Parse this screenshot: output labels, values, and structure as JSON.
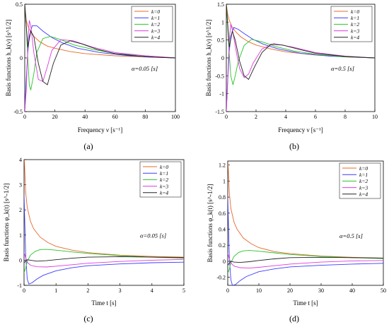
{
  "figure": {
    "panel_labels": [
      "(a)",
      "(b)",
      "(c)",
      "(d)"
    ]
  },
  "colors": {
    "k0": "#e8682a",
    "k1": "#3b3bff",
    "k2": "#28c428",
    "k3": "#dd3be0",
    "k4": "#222222"
  },
  "chart_data": [
    {
      "type": "line",
      "panel": "(a)",
      "xlabel": "Frequency  ν [s⁻¹]",
      "ylabel": "Basis functions h_k(ν) [s^1/2]",
      "annotation": "α=0.05 [s]",
      "xlim": [
        0,
        100
      ],
      "ylim": [
        -0.5,
        0.5
      ],
      "xticks": [
        "0",
        "20",
        "40",
        "60",
        "80",
        "100"
      ],
      "yticks": [
        "-0.5",
        "0",
        "0.5"
      ],
      "legend": "top-right",
      "grid": false,
      "series": [
        {
          "name": "k=0",
          "color_key": "k0",
          "x": [
            0,
            1,
            2,
            4,
            6,
            10,
            15,
            20,
            30,
            40,
            60,
            80,
            100
          ],
          "y": [
            0.5,
            0.35,
            0.3,
            0.24,
            0.2,
            0.15,
            0.11,
            0.09,
            0.06,
            0.04,
            0.02,
            0.01,
            0.0
          ]
        },
        {
          "name": "k=1",
          "color_key": "k1",
          "x": [
            0,
            1,
            2,
            3,
            5,
            8,
            12,
            18,
            25,
            35,
            50,
            70,
            100
          ],
          "y": [
            -0.5,
            -0.2,
            0.05,
            0.2,
            0.3,
            0.3,
            0.25,
            0.19,
            0.14,
            0.09,
            0.05,
            0.02,
            0.0
          ]
        },
        {
          "name": "k=2",
          "color_key": "k2",
          "x": [
            0,
            1,
            2,
            3,
            4,
            6,
            8,
            12,
            17,
            24,
            33,
            45,
            60,
            80,
            100
          ],
          "y": [
            0.5,
            0.3,
            0.0,
            -0.25,
            -0.3,
            -0.15,
            0.05,
            0.18,
            0.2,
            0.17,
            0.12,
            0.08,
            0.04,
            0.02,
            0.0
          ]
        },
        {
          "name": "k=3",
          "color_key": "k3",
          "x": [
            0,
            1,
            2,
            3,
            4,
            6,
            9,
            12,
            15,
            18,
            24,
            32,
            45,
            60,
            80,
            100
          ],
          "y": [
            -0.5,
            -0.3,
            0.1,
            0.35,
            0.3,
            0.05,
            -0.2,
            -0.22,
            -0.08,
            0.07,
            0.17,
            0.16,
            0.1,
            0.05,
            0.02,
            0.0
          ]
        },
        {
          "name": "k=4",
          "color_key": "k4",
          "x": [
            0,
            2,
            4,
            6,
            9,
            12,
            15,
            19,
            24,
            30,
            38,
            48,
            60,
            80,
            100
          ],
          "y": [
            0.5,
            0.1,
            0.25,
            0.2,
            -0.05,
            -0.22,
            -0.25,
            -0.05,
            0.12,
            0.16,
            0.13,
            0.08,
            0.04,
            0.01,
            0.0
          ]
        }
      ]
    },
    {
      "type": "line",
      "panel": "(b)",
      "xlabel": "Frequency  ν [s⁻¹]",
      "ylabel": "Basis functions h_k(ν) [s^1/2]",
      "annotation": "α=0.5 [s]",
      "xlim": [
        0,
        10
      ],
      "ylim": [
        -1.5,
        1.5
      ],
      "xticks": [
        "0",
        "2",
        "4",
        "6",
        "8",
        "10"
      ],
      "yticks": [
        "-1.5",
        "-1",
        "-0.5",
        "0",
        "0.5",
        "1",
        "1.5"
      ],
      "legend": "top-right",
      "grid": false,
      "series": [
        {
          "name": "k=0",
          "color_key": "k0",
          "x": [
            0,
            0.1,
            0.2,
            0.4,
            0.7,
            1,
            1.5,
            2,
            3,
            4,
            6,
            8,
            10
          ],
          "y": [
            1.5,
            1.2,
            1.05,
            0.85,
            0.7,
            0.58,
            0.45,
            0.36,
            0.25,
            0.17,
            0.08,
            0.03,
            0.0
          ]
        },
        {
          "name": "k=1",
          "color_key": "k1",
          "x": [
            0,
            0.1,
            0.2,
            0.3,
            0.5,
            0.8,
            1.2,
            1.8,
            2.5,
            3.5,
            5,
            7,
            10
          ],
          "y": [
            -1.5,
            -0.6,
            0.2,
            0.6,
            0.85,
            0.8,
            0.68,
            0.52,
            0.38,
            0.25,
            0.13,
            0.05,
            0.0
          ]
        },
        {
          "name": "k=2",
          "color_key": "k2",
          "x": [
            0,
            0.1,
            0.2,
            0.3,
            0.45,
            0.6,
            0.8,
            1.2,
            1.7,
            2.4,
            3.3,
            4.5,
            6,
            8,
            10
          ],
          "y": [
            1.5,
            0.8,
            0.1,
            -0.5,
            -0.75,
            -0.5,
            -0.1,
            0.35,
            0.52,
            0.45,
            0.32,
            0.2,
            0.1,
            0.03,
            0.0
          ]
        },
        {
          "name": "k=3",
          "color_key": "k3",
          "x": [
            0,
            0.1,
            0.2,
            0.3,
            0.45,
            0.7,
            0.9,
            1.2,
            1.5,
            1.8,
            2.4,
            3.2,
            4.5,
            6,
            8,
            10
          ],
          "y": [
            -1.5,
            -0.5,
            0.5,
            0.95,
            0.7,
            0.1,
            -0.3,
            -0.55,
            -0.45,
            -0.15,
            0.25,
            0.4,
            0.3,
            0.15,
            0.05,
            0.0
          ]
        },
        {
          "name": "k=4",
          "color_key": "k4",
          "x": [
            0,
            0.2,
            0.4,
            0.6,
            0.9,
            1.2,
            1.5,
            1.9,
            2.4,
            3,
            3.8,
            4.8,
            6,
            8,
            10
          ],
          "y": [
            1.5,
            0.3,
            0.75,
            0.5,
            -0.1,
            -0.5,
            -0.6,
            -0.25,
            0.15,
            0.38,
            0.36,
            0.25,
            0.13,
            0.04,
            0.0
          ]
        }
      ]
    },
    {
      "type": "line",
      "panel": "(c)",
      "xlabel": "Time  t [s]",
      "ylabel": "Basis functions  φ_k(t) [s^-1/2]",
      "annotation": "α=0.05 [s]",
      "xlim": [
        0,
        5
      ],
      "ylim": [
        -1,
        4
      ],
      "xticks": [
        "0",
        "1",
        "2",
        "3",
        "4",
        "5"
      ],
      "yticks": [
        "-1",
        "0",
        "1",
        "2",
        "3",
        "4"
      ],
      "legend": "top-right",
      "grid": false,
      "series": [
        {
          "name": "k=0",
          "color_key": "k0",
          "x": [
            0.01,
            0.03,
            0.05,
            0.1,
            0.2,
            0.3,
            0.5,
            0.75,
            1,
            1.5,
            2,
            3,
            4,
            5
          ],
          "y": [
            4,
            3.3,
            2.7,
            2.1,
            1.55,
            1.25,
            0.92,
            0.7,
            0.55,
            0.4,
            0.3,
            0.2,
            0.15,
            0.12
          ]
        },
        {
          "name": "k=1",
          "color_key": "k1",
          "x": [
            0,
            0.05,
            0.1,
            0.15,
            0.25,
            0.4,
            0.6,
            1,
            1.5,
            2,
            3,
            4,
            5
          ],
          "y": [
            2.6,
            0.2,
            -0.75,
            -0.95,
            -0.9,
            -0.75,
            -0.6,
            -0.42,
            -0.3,
            -0.22,
            -0.15,
            -0.1,
            -0.08
          ]
        },
        {
          "name": "k=2",
          "color_key": "k2",
          "x": [
            0,
            0.05,
            0.1,
            0.2,
            0.35,
            0.5,
            0.7,
            1,
            1.5,
            2,
            3,
            4,
            5
          ],
          "y": [
            -0.5,
            -0.3,
            -0.05,
            0.2,
            0.35,
            0.42,
            0.43,
            0.4,
            0.33,
            0.27,
            0.18,
            0.12,
            0.08
          ]
        },
        {
          "name": "k=3",
          "color_key": "k3",
          "x": [
            0,
            0.05,
            0.1,
            0.2,
            0.4,
            0.7,
            1,
            1.5,
            2,
            3,
            4,
            5
          ],
          "y": [
            0.3,
            0.1,
            -0.08,
            -0.2,
            -0.26,
            -0.27,
            -0.24,
            -0.18,
            -0.12,
            -0.05,
            0.0,
            0.03
          ]
        },
        {
          "name": "k=4",
          "color_key": "k4",
          "x": [
            0,
            0.1,
            0.2,
            0.4,
            0.7,
            1,
            1.5,
            2,
            3,
            4,
            5
          ],
          "y": [
            -0.1,
            0.02,
            0.0,
            -0.04,
            -0.02,
            0.02,
            0.08,
            0.12,
            0.14,
            0.12,
            0.1
          ]
        }
      ]
    },
    {
      "type": "line",
      "panel": "(d)",
      "xlabel": "Time  t [s]",
      "ylabel": "Basis functions  φ_k(t) [s^-1/2]",
      "annotation": "α=0.5 [s]",
      "xlim": [
        0,
        50
      ],
      "ylim": [
        -0.3,
        1.25
      ],
      "xticks": [
        "0",
        "10",
        "20",
        "30",
        "40",
        "50"
      ],
      "yticks": [
        "-0.2",
        "0",
        "0.2",
        "0.4",
        "0.6",
        "0.8",
        "1",
        "1.2"
      ],
      "legend": "top-right",
      "grid": false,
      "series": [
        {
          "name": "k=0",
          "color_key": "k0",
          "x": [
            0.1,
            0.3,
            0.5,
            1,
            2,
            3,
            5,
            7.5,
            10,
            15,
            20,
            30,
            40,
            50
          ],
          "y": [
            1.22,
            1.05,
            0.86,
            0.66,
            0.49,
            0.4,
            0.29,
            0.22,
            0.17,
            0.12,
            0.095,
            0.065,
            0.05,
            0.04
          ]
        },
        {
          "name": "k=1",
          "color_key": "k1",
          "x": [
            0,
            0.5,
            1,
            1.5,
            2.5,
            4,
            6,
            10,
            15,
            20,
            30,
            40,
            50
          ],
          "y": [
            0.8,
            0.06,
            -0.23,
            -0.3,
            -0.29,
            -0.24,
            -0.19,
            -0.13,
            -0.095,
            -0.07,
            -0.05,
            -0.035,
            -0.025
          ]
        },
        {
          "name": "k=2",
          "color_key": "k2",
          "x": [
            0,
            0.5,
            1,
            2,
            3.5,
            5,
            7,
            10,
            15,
            20,
            30,
            40,
            50
          ],
          "y": [
            -0.15,
            -0.1,
            -0.02,
            0.06,
            0.11,
            0.13,
            0.135,
            0.125,
            0.105,
            0.085,
            0.06,
            0.045,
            0.035
          ]
        },
        {
          "name": "k=3",
          "color_key": "k3",
          "x": [
            0,
            0.5,
            1,
            2,
            4,
            7,
            10,
            15,
            20,
            30,
            40,
            50
          ],
          "y": [
            0.1,
            0.03,
            -0.02,
            -0.06,
            -0.08,
            -0.085,
            -0.075,
            -0.055,
            -0.035,
            -0.01,
            0.005,
            0.01
          ]
        },
        {
          "name": "k=4",
          "color_key": "k4",
          "x": [
            0,
            1,
            2,
            4,
            7,
            10,
            15,
            20,
            30,
            40,
            50
          ],
          "y": [
            -0.05,
            0.0,
            -0.01,
            -0.015,
            -0.005,
            0.01,
            0.03,
            0.045,
            0.05,
            0.045,
            0.04
          ]
        }
      ]
    }
  ]
}
